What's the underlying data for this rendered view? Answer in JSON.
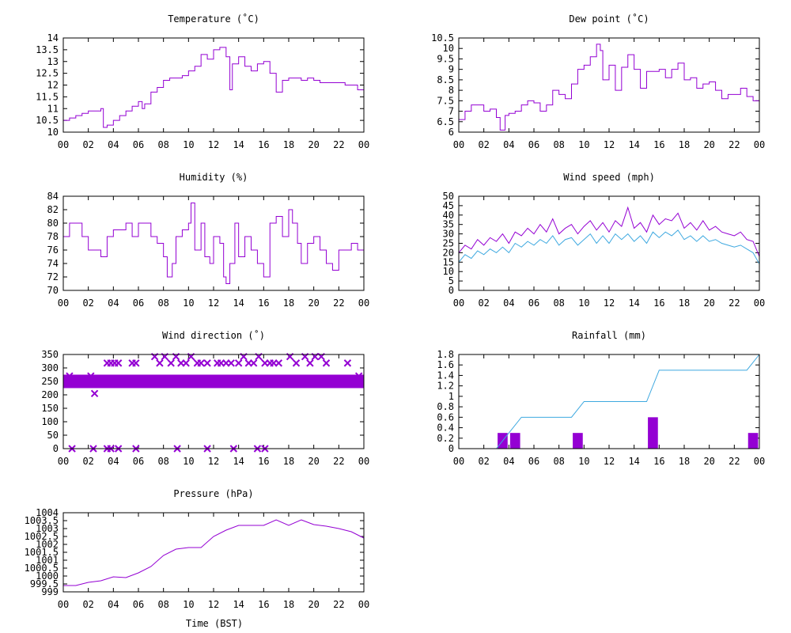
{
  "page": {
    "time_axis_label": "Time (BST)"
  },
  "colors": {
    "primary": "#9400d3",
    "secondary": "#3fa9e0",
    "frame": "#000000",
    "grid": "#a0a0a0"
  },
  "time_ticks": [
    "00",
    "02",
    "04",
    "06",
    "08",
    "10",
    "12",
    "14",
    "16",
    "18",
    "20",
    "22",
    "00"
  ],
  "chart_data": [
    {
      "id": "temperature",
      "type": "line",
      "title": "Temperature (˚C)",
      "xlim": [
        0,
        24
      ],
      "ylim": [
        10,
        14
      ],
      "yticks": [
        "10",
        "10.5",
        "11",
        "11.5",
        "12",
        "12.5",
        "13",
        "13.5",
        "14"
      ],
      "step": true,
      "series": [
        {
          "color": "#9400d3",
          "x": [
            0,
            0.5,
            1,
            1.5,
            2,
            2.5,
            3,
            3.2,
            3.5,
            4,
            4.5,
            5,
            5.5,
            6,
            6.3,
            6.5,
            7,
            7.5,
            8,
            8.5,
            9,
            9.5,
            10,
            10.5,
            11,
            11.5,
            12,
            12.5,
            13,
            13.3,
            13.5,
            14,
            14.5,
            15,
            15.5,
            16,
            16.5,
            17,
            17.5,
            18,
            18.5,
            19,
            19.5,
            20,
            20.5,
            21,
            21.5,
            22,
            22.5,
            23,
            23.5,
            24
          ],
          "y": [
            10.5,
            10.6,
            10.7,
            10.8,
            10.9,
            10.9,
            11.0,
            10.2,
            10.3,
            10.5,
            10.7,
            10.9,
            11.1,
            11.3,
            11.0,
            11.2,
            11.7,
            11.9,
            12.2,
            12.3,
            12.3,
            12.4,
            12.6,
            12.8,
            13.3,
            13.1,
            13.5,
            13.6,
            13.2,
            11.8,
            12.9,
            13.2,
            12.8,
            12.6,
            12.9,
            13.0,
            12.5,
            11.7,
            12.2,
            12.3,
            12.3,
            12.2,
            12.3,
            12.2,
            12.1,
            12.1,
            12.1,
            12.1,
            12.0,
            12.0,
            11.8,
            11.0
          ]
        }
      ]
    },
    {
      "id": "dewpoint",
      "type": "line",
      "title": "Dew point (˚C)",
      "xlim": [
        0,
        24
      ],
      "ylim": [
        6,
        10.5
      ],
      "yticks": [
        "6",
        "6.5",
        "7",
        "7.5",
        "8",
        "8.5",
        "9",
        "9.5",
        "10",
        "10.5"
      ],
      "step": true,
      "series": [
        {
          "color": "#9400d3",
          "x": [
            0,
            0.5,
            1,
            1.5,
            2,
            2.5,
            3,
            3.3,
            3.7,
            4,
            4.5,
            5,
            5.5,
            6,
            6.5,
            7,
            7.5,
            8,
            8.5,
            9,
            9.5,
            10,
            10.5,
            11,
            11.3,
            11.5,
            12,
            12.5,
            13,
            13.5,
            14,
            14.5,
            15,
            15.5,
            16,
            16.5,
            17,
            17.5,
            18,
            18.5,
            19,
            19.5,
            20,
            20.5,
            21,
            21.5,
            22,
            22.5,
            23,
            23.5,
            24
          ],
          "y": [
            6.6,
            7.0,
            7.3,
            7.3,
            7.0,
            7.1,
            6.7,
            6.1,
            6.8,
            6.9,
            7.0,
            7.3,
            7.5,
            7.4,
            7.0,
            7.3,
            8.0,
            7.8,
            7.6,
            8.3,
            9.0,
            9.2,
            9.6,
            10.2,
            9.9,
            8.5,
            9.2,
            8.0,
            9.1,
            9.7,
            9.0,
            8.1,
            8.9,
            8.9,
            9.0,
            8.6,
            9.0,
            9.3,
            8.5,
            8.6,
            8.1,
            8.3,
            8.4,
            8.0,
            7.6,
            7.8,
            7.8,
            8.1,
            7.7,
            7.5,
            7.4
          ]
        }
      ]
    },
    {
      "id": "humidity",
      "type": "line",
      "title": "Humidity (%)",
      "xlim": [
        0,
        24
      ],
      "ylim": [
        70,
        84
      ],
      "yticks": [
        "70",
        "72",
        "74",
        "76",
        "78",
        "80",
        "82",
        "84"
      ],
      "step": true,
      "series": [
        {
          "color": "#9400d3",
          "x": [
            0,
            0.5,
            1,
            1.5,
            2,
            2.5,
            3,
            3.5,
            4,
            4.5,
            5,
            5.5,
            6,
            6.5,
            7,
            7.5,
            8,
            8.3,
            8.7,
            9,
            9.5,
            10,
            10.2,
            10.5,
            11,
            11.3,
            11.7,
            12,
            12.5,
            12.8,
            13,
            13.3,
            13.7,
            14,
            14.5,
            15,
            15.5,
            16,
            16.5,
            17,
            17.5,
            18,
            18.3,
            18.7,
            19,
            19.5,
            20,
            20.5,
            21,
            21.5,
            22,
            22.5,
            23,
            23.5,
            24
          ],
          "y": [
            78,
            80,
            80,
            78,
            76,
            76,
            75,
            78,
            79,
            79,
            80,
            78,
            80,
            80,
            78,
            77,
            75,
            72,
            74,
            78,
            79,
            80,
            83,
            76,
            80,
            75,
            74,
            78,
            77,
            72,
            71,
            74,
            80,
            75,
            78,
            76,
            74,
            72,
            80,
            81,
            78,
            82,
            80,
            77,
            74,
            77,
            78,
            76,
            74,
            73,
            76,
            76,
            77,
            76,
            79
          ]
        }
      ]
    },
    {
      "id": "windspeed",
      "type": "line",
      "title": "Wind speed (mph)",
      "xlim": [
        0,
        24
      ],
      "ylim": [
        0,
        50
      ],
      "yticks": [
        "0",
        "5",
        "10",
        "15",
        "20",
        "25",
        "30",
        "35",
        "40",
        "45",
        "50"
      ],
      "step": false,
      "series": [
        {
          "color": "#9400d3",
          "x": [
            0,
            0.5,
            1,
            1.5,
            2,
            2.5,
            3,
            3.5,
            4,
            4.5,
            5,
            5.5,
            6,
            6.5,
            7,
            7.5,
            8,
            8.5,
            9,
            9.5,
            10,
            10.5,
            11,
            11.5,
            12,
            12.5,
            13,
            13.5,
            14,
            14.5,
            15,
            15.5,
            16,
            16.5,
            17,
            17.5,
            18,
            18.5,
            19,
            19.5,
            20,
            20.5,
            21,
            21.5,
            22,
            22.5,
            23,
            23.5,
            24
          ],
          "y": [
            20,
            24,
            22,
            27,
            24,
            28,
            26,
            30,
            25,
            31,
            29,
            33,
            30,
            35,
            31,
            38,
            30,
            33,
            35,
            30,
            34,
            37,
            32,
            36,
            31,
            37,
            34,
            44,
            33,
            36,
            31,
            40,
            35,
            38,
            37,
            41,
            33,
            36,
            32,
            37,
            32,
            34,
            31,
            30,
            29,
            31,
            27,
            26,
            18
          ]
        },
        {
          "color": "#3fa9e0",
          "x": [
            0,
            0.5,
            1,
            1.5,
            2,
            2.5,
            3,
            3.5,
            4,
            4.5,
            5,
            5.5,
            6,
            6.5,
            7,
            7.5,
            8,
            8.5,
            9,
            9.5,
            10,
            10.5,
            11,
            11.5,
            12,
            12.5,
            13,
            13.5,
            14,
            14.5,
            15,
            15.5,
            16,
            16.5,
            17,
            17.5,
            18,
            18.5,
            19,
            19.5,
            20,
            20.5,
            21,
            21.5,
            22,
            22.5,
            23,
            23.5,
            24
          ],
          "y": [
            15,
            19,
            17,
            21,
            19,
            22,
            20,
            23,
            20,
            25,
            23,
            26,
            24,
            27,
            25,
            29,
            24,
            27,
            28,
            24,
            27,
            30,
            25,
            29,
            25,
            30,
            27,
            30,
            26,
            29,
            25,
            31,
            28,
            31,
            29,
            32,
            27,
            29,
            26,
            29,
            26,
            27,
            25,
            24,
            23,
            24,
            22,
            20,
            14
          ]
        }
      ]
    },
    {
      "id": "winddirection",
      "type": "scatter",
      "title": "Wind direction (˚)",
      "xlim": [
        0,
        24
      ],
      "ylim": [
        0,
        350
      ],
      "yticks": [
        "0",
        "50",
        "100",
        "150",
        "200",
        "250",
        "300",
        "350"
      ],
      "band": {
        "from": 225,
        "to": 275,
        "color": "#9400d3"
      },
      "series": [
        {
          "color": "#9400d3",
          "marker": "x",
          "x": [
            0.5,
            2.2,
            2.5,
            3.5,
            3.8,
            4.1,
            4.4,
            5.5,
            5.8,
            7.3,
            7.7,
            8.1,
            8.6,
            9,
            9.4,
            9.8,
            10.2,
            10.7,
            11,
            11.5,
            12.3,
            12.6,
            13,
            13.4,
            14,
            14.4,
            14.8,
            15.2,
            15.6,
            16.1,
            16.5,
            16.8,
            17.2,
            18.1,
            18.6,
            19.3,
            19.7,
            20.1,
            20.6,
            21,
            22.7,
            23.6,
            0.7,
            2.4,
            3.5,
            3.8,
            4.4,
            5.8,
            9.1,
            11.5,
            13.6,
            15.5,
            16.1
          ],
          "y": [
            270,
            270,
            205,
            318,
            318,
            318,
            318,
            318,
            318,
            342,
            318,
            342,
            318,
            342,
            318,
            318,
            342,
            318,
            318,
            318,
            318,
            318,
            318,
            318,
            318,
            342,
            318,
            318,
            342,
            318,
            318,
            318,
            318,
            342,
            318,
            342,
            318,
            342,
            342,
            318,
            318,
            270,
            0,
            0,
            0,
            0,
            0,
            0,
            0,
            0,
            0,
            0,
            0
          ]
        }
      ]
    },
    {
      "id": "rainfall",
      "type": "bar",
      "title": "Rainfall (mm)",
      "xlim": [
        0,
        24
      ],
      "ylim": [
        0,
        1.8
      ],
      "yticks": [
        "0",
        "0.2",
        "0.4",
        "0.6",
        "0.8",
        "1",
        "1.2",
        "1.4",
        "1.6",
        "1.8"
      ],
      "bars": {
        "color": "#9400d3",
        "x": [
          3.5,
          4.5,
          9.5,
          15.5,
          23.5
        ],
        "values": [
          0.3,
          0.3,
          0.3,
          0.6,
          0.3
        ]
      },
      "series": [
        {
          "color": "#3fa9e0",
          "x": [
            3,
            4,
            5,
            9,
            10,
            15,
            16,
            23,
            24
          ],
          "y": [
            0,
            0.3,
            0.6,
            0.6,
            0.9,
            0.9,
            1.5,
            1.5,
            1.8
          ]
        }
      ]
    },
    {
      "id": "pressure",
      "type": "line",
      "title": "Pressure (hPa)",
      "xlim": [
        0,
        24
      ],
      "ylim": [
        999,
        1004
      ],
      "yticks": [
        "999",
        "999.5",
        "1000",
        "1000.5",
        "1001",
        "1001.5",
        "1002",
        "1002.5",
        "1003",
        "1003.5",
        "1004"
      ],
      "step": false,
      "series": [
        {
          "color": "#9400d3",
          "x": [
            0,
            1,
            2,
            3,
            4,
            5,
            6,
            7,
            8,
            9,
            10,
            11,
            12,
            13,
            14,
            15,
            16,
            17,
            18,
            19,
            20,
            21,
            22,
            23,
            24
          ],
          "y": [
            999.4,
            999.4,
            999.6,
            999.7,
            999.95,
            999.9,
            1000.2,
            1000.6,
            1001.3,
            1001.7,
            1001.8,
            1001.8,
            1002.5,
            1002.9,
            1003.2,
            1003.2,
            1003.2,
            1003.55,
            1003.2,
            1003.55,
            1003.25,
            1003.15,
            1003.0,
            1002.8,
            1002.4
          ]
        }
      ]
    }
  ]
}
